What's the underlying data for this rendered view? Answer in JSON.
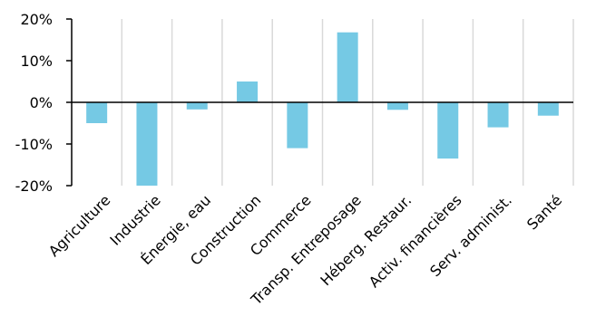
{
  "chart_data": {
    "type": "bar",
    "categories": [
      "Agriculture",
      "Industrie",
      "Énergie, eau",
      "Construction",
      "Commerce",
      "Transp. Entreposage",
      "Héberg. Restaur.",
      "Activ. financières",
      "Serv. administ.",
      "Santé"
    ],
    "values": [
      -5,
      -20,
      -1.7,
      5,
      -11,
      16.8,
      -1.8,
      -13.5,
      -6,
      -3.2
    ],
    "yticks": [
      20,
      10,
      0,
      -10,
      -20
    ],
    "ytick_labels": [
      "20%",
      "10%",
      "0%",
      "-10%",
      "-20%"
    ],
    "ylim": [
      -20,
      20
    ],
    "grid": true,
    "title": "",
    "xlabel": "",
    "ylabel": "",
    "bar_color": "#75c9e4",
    "grid_color": "#d9d9d9"
  }
}
